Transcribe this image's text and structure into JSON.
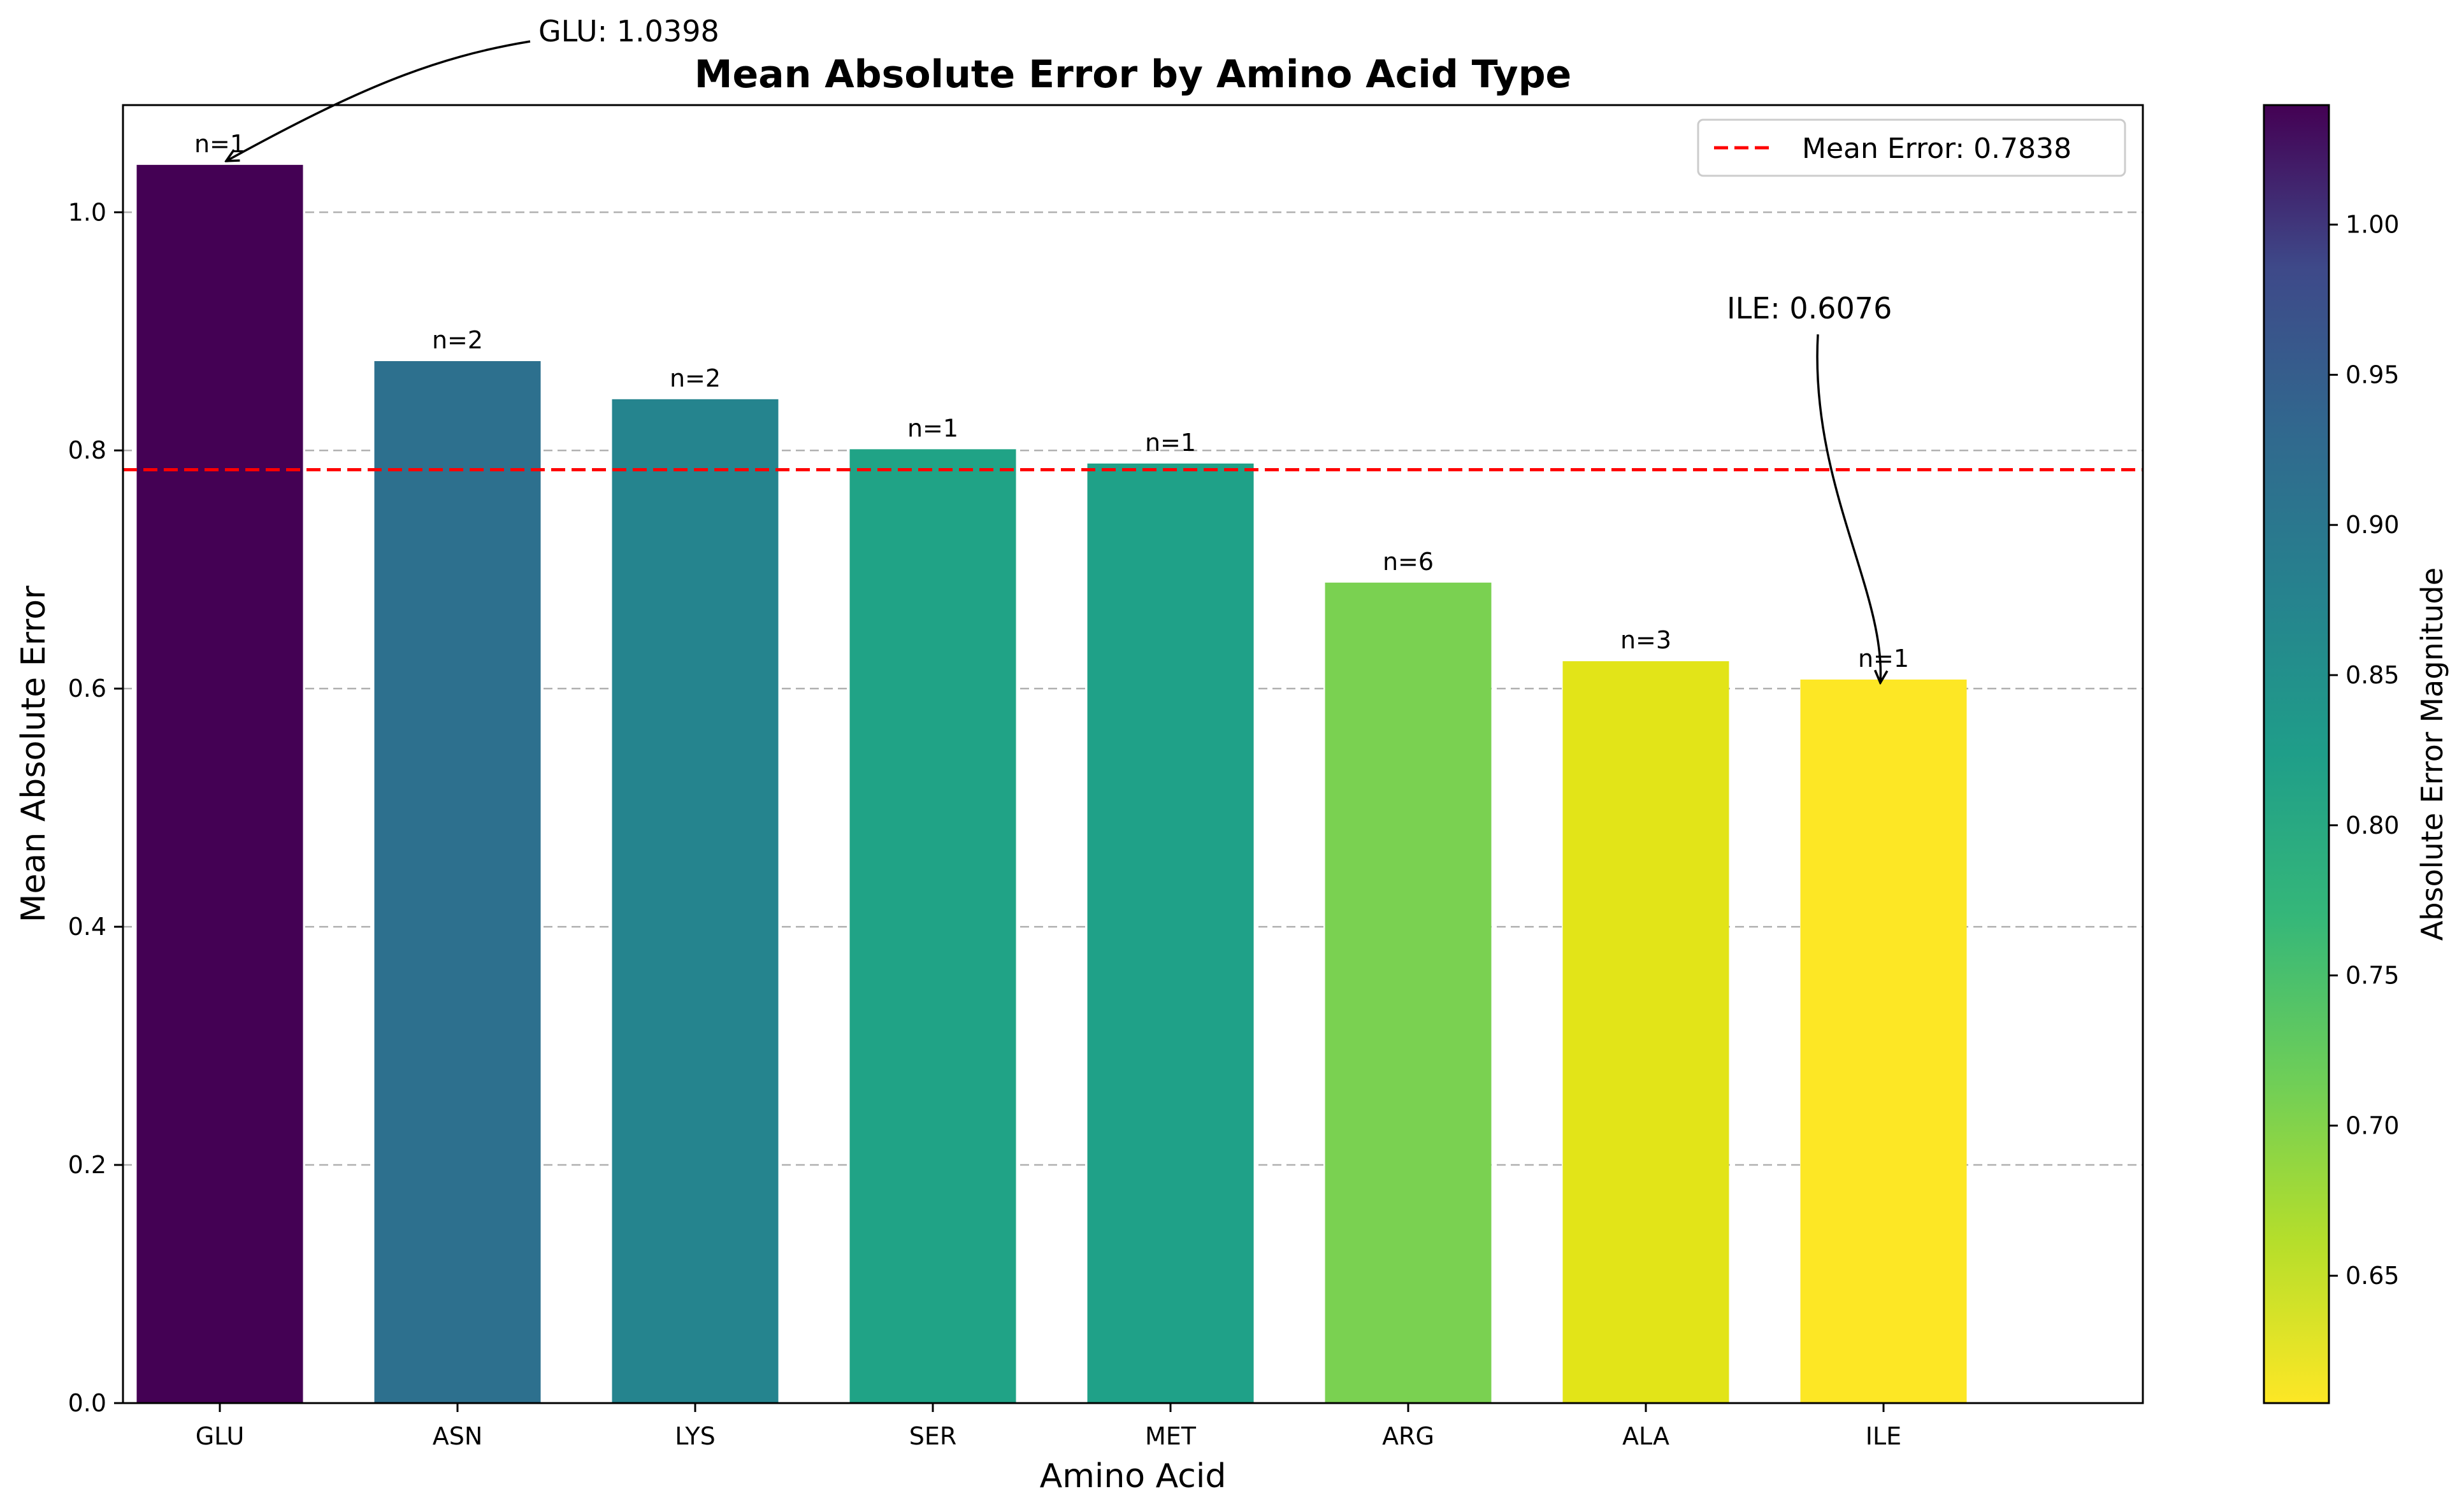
{
  "chart_data": {
    "type": "bar",
    "title": "Mean Absolute Error by Amino Acid Type",
    "xlabel": "Amino Acid",
    "ylabel": "Mean Absolute Error",
    "categories": [
      "GLU",
      "ASN",
      "LYS",
      "SER",
      "MET",
      "ARG",
      "ALA",
      "ILE"
    ],
    "values": [
      1.0398,
      0.875,
      0.843,
      0.801,
      0.789,
      0.689,
      0.623,
      0.6076
    ],
    "counts": [
      "n=1",
      "n=2",
      "n=2",
      "n=1",
      "n=1",
      "n=6",
      "n=3",
      "n=1"
    ],
    "colors": [
      "#440154",
      "#2d708e",
      "#25848e",
      "#20a386",
      "#1fa188",
      "#7ad151",
      "#e2e418",
      "#fde725"
    ],
    "ylim": [
      0,
      1.09
    ],
    "yticks": [
      0.0,
      0.2,
      0.4,
      0.6,
      0.8,
      1.0
    ],
    "ytick_labels": [
      "0.0",
      "0.2",
      "0.4",
      "0.6",
      "0.8",
      "1.0"
    ],
    "grid": "y-dashed",
    "mean_line": {
      "value": 0.7838,
      "color": "#ff0000",
      "label": "Mean Error: 0.7838"
    },
    "legend_position": "upper right",
    "annotations": [
      {
        "text": "GLU: 1.0398",
        "target_category": "GLU",
        "target_value": 1.0398
      },
      {
        "text": "ILE: 0.6076",
        "target_category": "ILE",
        "target_value": 0.6076
      }
    ],
    "colorbar": {
      "label": "Absolute Error Magnitude",
      "min": 0.6076,
      "max": 1.0398,
      "ticks": [
        0.65,
        0.7,
        0.75,
        0.8,
        0.85,
        0.9,
        0.95,
        1.0
      ],
      "tick_labels": [
        "0.65",
        "0.70",
        "0.75",
        "0.80",
        "0.85",
        "0.90",
        "0.95",
        "1.00"
      ],
      "colormap": "viridis_r"
    }
  }
}
